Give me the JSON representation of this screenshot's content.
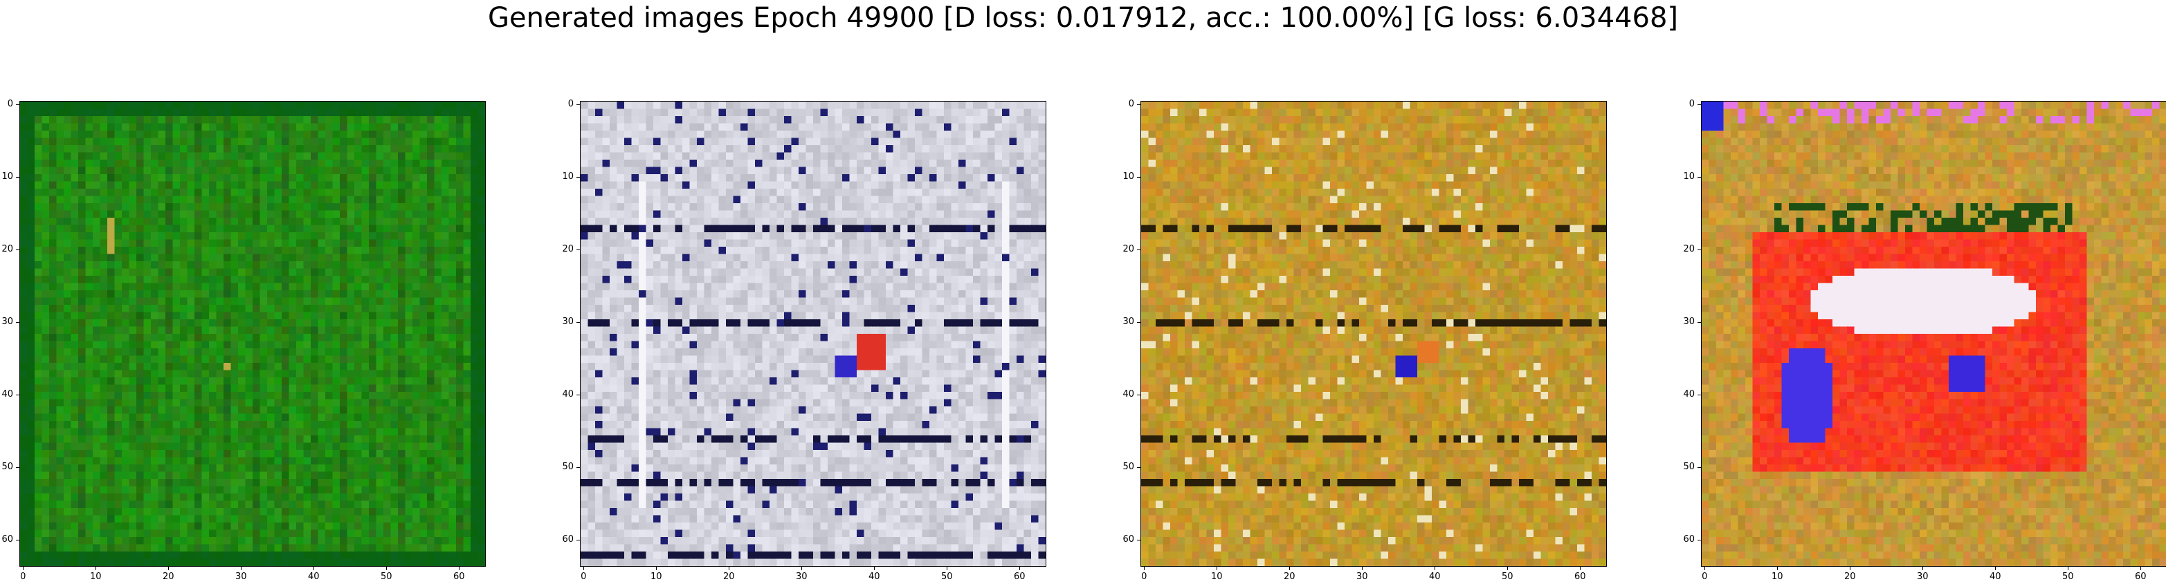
{
  "figure": {
    "title": "Generated images Epoch 49900 [D loss: 0.017912, acc.: 100.00%] [G loss: 6.034468]"
  },
  "axis": {
    "y_ticks": [
      "0",
      "10",
      "20",
      "30",
      "40",
      "50",
      "60"
    ],
    "x_ticks": [
      "0",
      "10",
      "20",
      "30",
      "40",
      "50",
      "60"
    ],
    "y_values": [
      0,
      10,
      20,
      30,
      40,
      50,
      60
    ],
    "x_values": [
      0,
      10,
      20,
      30,
      40,
      50,
      60
    ],
    "image_size": 64
  },
  "panels": [
    {
      "name": "panel-1",
      "dominant_color": "#2b8a1c",
      "highlight_color": "#c8a23a"
    },
    {
      "name": "panel-2",
      "dominant_color": "#c9ccd6",
      "highlight_color": "#e23a2a"
    },
    {
      "name": "panel-3",
      "dominant_color": "#b8901f",
      "highlight_color": "#3a2ad0"
    },
    {
      "name": "panel-4",
      "dominant_color": "#b58a2c",
      "highlight_color": "#ff2a1a"
    }
  ]
}
